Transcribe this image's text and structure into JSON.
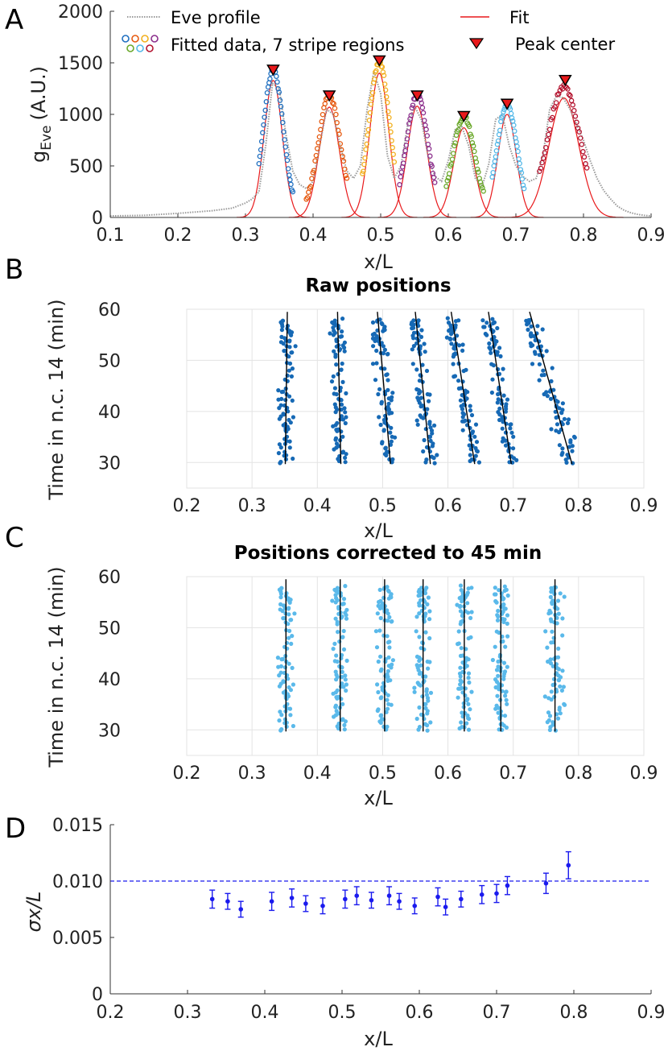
{
  "colors": {
    "stripes": [
      "#1f6fc0",
      "#e65a10",
      "#f2b01e",
      "#8b2e8b",
      "#6aa82a",
      "#54b8e8",
      "#b3122e"
    ],
    "fit": "#e8191b",
    "profile": "#9a9a9a",
    "marker": "#e8191b",
    "raw_points": "#1669b5",
    "corrected_points": "#5ab9ea",
    "panel_d": "#1a1aee",
    "grid": "#e3e3e3"
  },
  "panels": {
    "A": {
      "letter": "A"
    },
    "B": {
      "letter": "B",
      "title": "Raw positions"
    },
    "C": {
      "letter": "C",
      "title": "Positions corrected to 45 min"
    },
    "D": {
      "letter": "D"
    }
  },
  "chart_data": [
    {
      "panel": "A",
      "type": "line",
      "ylabel_main": "g",
      "ylabel_sub": "Eve",
      "ylabel_unit": "(A.U.)",
      "xlabel": "x/L",
      "xlim": [
        0.1,
        0.9
      ],
      "ylim": [
        0,
        2000
      ],
      "xticks": [
        "0.1",
        "0.2",
        "0.3",
        "0.4",
        "0.5",
        "0.6",
        "0.7",
        "0.8",
        "0.9"
      ],
      "yticks": [
        "0",
        "500",
        "1000",
        "1500",
        "2000"
      ],
      "legend": [
        "Eve profile",
        "Fitted data, 7 stripe regions",
        "Fit",
        "Peak center"
      ],
      "legend_placement": "top",
      "grid": false,
      "profile": {
        "x": [
          0.1,
          0.15,
          0.2,
          0.25,
          0.28,
          0.3,
          0.31,
          0.32,
          0.33,
          0.34,
          0.35,
          0.36,
          0.37,
          0.38,
          0.39,
          0.4,
          0.41,
          0.42,
          0.43,
          0.44,
          0.45,
          0.46,
          0.47,
          0.48,
          0.49,
          0.5,
          0.51,
          0.52,
          0.53,
          0.54,
          0.55,
          0.56,
          0.57,
          0.58,
          0.59,
          0.6,
          0.61,
          0.62,
          0.63,
          0.64,
          0.65,
          0.66,
          0.67,
          0.68,
          0.69,
          0.7,
          0.71,
          0.72,
          0.73,
          0.74,
          0.75,
          0.76,
          0.77,
          0.78,
          0.79,
          0.8,
          0.81,
          0.82,
          0.83,
          0.84,
          0.85,
          0.86,
          0.87,
          0.88,
          0.89,
          0.9
        ],
        "y": [
          15,
          20,
          40,
          65,
          90,
          140,
          180,
          250,
          700,
          1300,
          1250,
          800,
          450,
          320,
          280,
          350,
          700,
          1050,
          1000,
          700,
          450,
          380,
          500,
          1050,
          1420,
          1200,
          600,
          380,
          500,
          900,
          1080,
          950,
          600,
          400,
          350,
          550,
          850,
          880,
          700,
          380,
          300,
          520,
          950,
          1000,
          700,
          500,
          400,
          350,
          380,
          600,
          1050,
          1180,
          1160,
          1050,
          900,
          750,
          550,
          380,
          260,
          180,
          110,
          70,
          45,
          30,
          20,
          15
        ]
      },
      "stripes": [
        {
          "center": 0.341,
          "amplitude": 1330,
          "sigma": 0.0135,
          "range": [
            0.32,
            0.37
          ]
        },
        {
          "center": 0.424,
          "amplitude": 1070,
          "sigma": 0.015,
          "range": [
            0.39,
            0.45
          ]
        },
        {
          "center": 0.498,
          "amplitude": 1400,
          "sigma": 0.014,
          "range": [
            0.473,
            0.52
          ]
        },
        {
          "center": 0.554,
          "amplitude": 1080,
          "sigma": 0.0145,
          "range": [
            0.528,
            0.58
          ]
        },
        {
          "center": 0.623,
          "amplitude": 870,
          "sigma": 0.015,
          "range": [
            0.597,
            0.652
          ]
        },
        {
          "center": 0.687,
          "amplitude": 1000,
          "sigma": 0.0135,
          "range": [
            0.665,
            0.712
          ]
        },
        {
          "center": 0.771,
          "amplitude": 1160,
          "sigma": 0.022,
          "range": [
            0.735,
            0.805
          ]
        }
      ],
      "peak_centers": [
        {
          "x": 0.341,
          "y": 1430
        },
        {
          "x": 0.424,
          "y": 1180
        },
        {
          "x": 0.498,
          "y": 1520
        },
        {
          "x": 0.554,
          "y": 1180
        },
        {
          "x": 0.623,
          "y": 980
        },
        {
          "x": 0.687,
          "y": 1100
        },
        {
          "x": 0.773,
          "y": 1330
        }
      ]
    },
    {
      "panel": "B",
      "type": "scatter",
      "title": "Raw positions",
      "xlabel": "x/L",
      "ylabel": "Time in n.c. 14 (min)",
      "xlim": [
        0.2,
        0.9
      ],
      "ylim": [
        25,
        60
      ],
      "xticks": [
        "0.2",
        "0.3",
        "0.4",
        "0.5",
        "0.6",
        "0.7",
        "0.8",
        "0.9"
      ],
      "yticks": [
        "30",
        "40",
        "50",
        "60"
      ],
      "grid": true,
      "time_range": [
        30,
        58
      ],
      "stripes": [
        {
          "fit_at_30": 0.351,
          "fit_at_58": 0.354,
          "spread": 0.012
        },
        {
          "fit_at_30": 0.436,
          "fit_at_58": 0.431,
          "spread": 0.012
        },
        {
          "fit_at_30": 0.512,
          "fit_at_58": 0.492,
          "spread": 0.012
        },
        {
          "fit_at_30": 0.573,
          "fit_at_58": 0.55,
          "spread": 0.012
        },
        {
          "fit_at_30": 0.641,
          "fit_at_58": 0.605,
          "spread": 0.012
        },
        {
          "fit_at_30": 0.697,
          "fit_at_58": 0.662,
          "spread": 0.012
        },
        {
          "fit_at_30": 0.79,
          "fit_at_58": 0.725,
          "spread": 0.014
        }
      ]
    },
    {
      "panel": "C",
      "type": "scatter",
      "title": "Positions corrected to 45 min",
      "xlabel": "x/L",
      "ylabel": "Time in n.c. 14 (min)",
      "xlim": [
        0.2,
        0.9
      ],
      "ylim": [
        25,
        60
      ],
      "xticks": [
        "0.2",
        "0.3",
        "0.4",
        "0.5",
        "0.6",
        "0.7",
        "0.8",
        "0.9"
      ],
      "yticks": [
        "30",
        "40",
        "50",
        "60"
      ],
      "grid": true,
      "time_range": [
        30,
        58
      ],
      "stripes": [
        {
          "center": 0.352,
          "spread": 0.012
        },
        {
          "center": 0.435,
          "spread": 0.012
        },
        {
          "center": 0.503,
          "spread": 0.012
        },
        {
          "center": 0.562,
          "spread": 0.012
        },
        {
          "center": 0.625,
          "spread": 0.012
        },
        {
          "center": 0.681,
          "spread": 0.012
        },
        {
          "center": 0.764,
          "spread": 0.013
        }
      ]
    },
    {
      "panel": "D",
      "type": "scatter",
      "ylabel": "σx/L",
      "xlabel": "x/L",
      "xlim": [
        0.2,
        0.9
      ],
      "ylim": [
        0,
        0.015
      ],
      "xticks": [
        "0.2",
        "0.3",
        "0.4",
        "0.5",
        "0.6",
        "0.7",
        "0.8",
        "0.9"
      ],
      "yticks": [
        "0",
        "0.005",
        "0.010",
        "0.015"
      ],
      "grid": false,
      "reference_line": 0.01,
      "x": [
        0.332,
        0.352,
        0.369,
        0.409,
        0.435,
        0.453,
        0.475,
        0.504,
        0.519,
        0.538,
        0.561,
        0.574,
        0.594,
        0.624,
        0.634,
        0.654,
        0.681,
        0.7,
        0.714,
        0.764,
        0.793
      ],
      "y": [
        0.0084,
        0.0082,
        0.0075,
        0.0082,
        0.0085,
        0.008,
        0.0078,
        0.0084,
        0.0087,
        0.0083,
        0.0087,
        0.0082,
        0.0078,
        0.0086,
        0.0077,
        0.0084,
        0.0088,
        0.0089,
        0.0096,
        0.0098,
        0.0114
      ],
      "error": [
        0.0008,
        0.0007,
        0.0007,
        0.0008,
        0.0008,
        0.0007,
        0.0007,
        0.0008,
        0.0008,
        0.0007,
        0.0008,
        0.0007,
        0.0007,
        0.0008,
        0.0007,
        0.0007,
        0.0008,
        0.0008,
        0.0008,
        0.0009,
        0.0012
      ]
    }
  ]
}
